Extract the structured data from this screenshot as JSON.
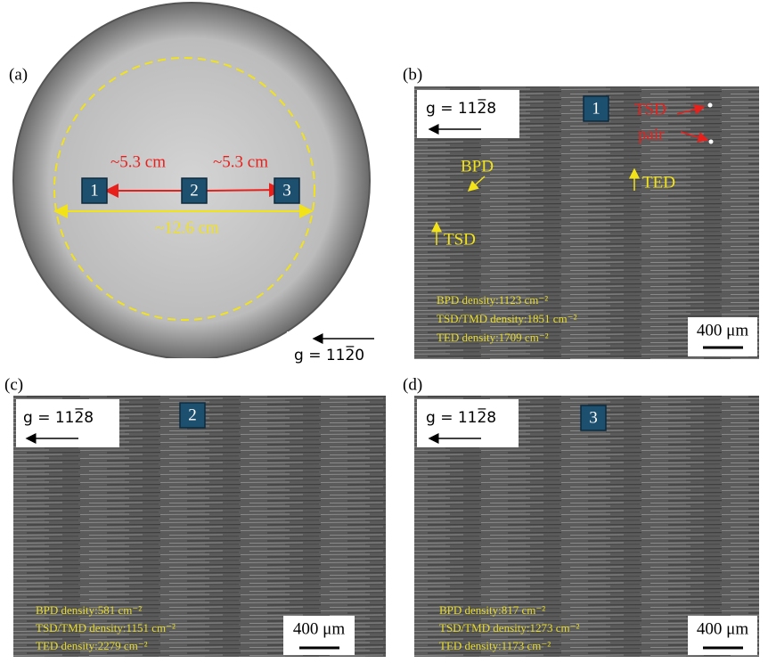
{
  "panels": [
    {
      "label": "(a)",
      "g_vector": "g = 112̅0",
      "positions": [
        "1",
        "2",
        "3"
      ],
      "distance_labels": [
        "~5.3 cm",
        "~5.3 cm"
      ],
      "diameter_label": "~12.6 cm"
    },
    {
      "label": "(b)",
      "g_vector": "g = 112̅8",
      "position": "1",
      "annotations": [
        "TSD",
        "pair",
        "BPD",
        "TED",
        "TSD"
      ],
      "densities": [
        "BPD density:1123 cm⁻²",
        "TSD/TMD density:1851 cm⁻²",
        "TED density:1709 cm⁻²"
      ],
      "scale_bar": "400 μm"
    },
    {
      "label": "(c)",
      "g_vector": "g = 112̅8",
      "position": "2",
      "densities": [
        "BPD density:581 cm⁻²",
        "TSD/TMD density:1151 cm⁻²",
        "TED density:2279 cm⁻²"
      ],
      "scale_bar": "400 μm"
    },
    {
      "label": "(d)",
      "g_vector": "g = 112̅8",
      "position": "3",
      "densities": [
        "BPD density:817 cm⁻²",
        "TSD/TMD density:1273 cm⁻²",
        "TED density:1173 cm⁻²"
      ],
      "scale_bar": "400 μm"
    }
  ]
}
